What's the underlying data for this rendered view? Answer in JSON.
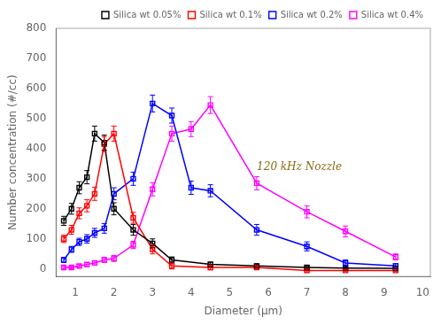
{
  "chart_data": {
    "type": "line",
    "xlabel": "Diameter (μm)",
    "ylabel": "Number concentration (#/cc)",
    "xlim": [
      0.5,
      10.2
    ],
    "ylim": [
      -25,
      800
    ],
    "xticks": [
      1,
      2,
      3,
      4,
      5,
      6,
      7,
      8,
      9,
      10
    ],
    "yticks": [
      0,
      100,
      200,
      300,
      400,
      500,
      600,
      700,
      800
    ],
    "grid": false,
    "legend": "upper right",
    "marker": "square",
    "line_style": "solid",
    "annotations": [
      {
        "text": "120 kHz Nozzle",
        "color": "#8B6914"
      }
    ],
    "series": [
      {
        "name": "Silica wt 0.05%",
        "color": "black",
        "x": [
          0.7,
          0.9,
          1.1,
          1.3,
          1.5,
          1.75,
          2.0,
          2.5,
          3.0,
          3.5,
          4.5,
          5.7,
          7.0,
          8.0,
          9.3
        ],
        "values": [
          160,
          200,
          270,
          305,
          450,
          420,
          200,
          130,
          85,
          30,
          15,
          10,
          5,
          3,
          2
        ],
        "yerr": [
          15,
          18,
          20,
          22,
          25,
          25,
          20,
          18,
          15,
          10,
          8,
          7,
          5,
          4,
          3
        ]
      },
      {
        "name": "Silica wt 0.1%",
        "color": "red",
        "x": [
          0.7,
          0.9,
          1.1,
          1.3,
          1.5,
          1.75,
          2.0,
          2.5,
          3.0,
          3.5,
          4.5,
          5.7,
          7.0,
          8.0,
          9.3
        ],
        "values": [
          100,
          130,
          185,
          210,
          250,
          415,
          450,
          170,
          65,
          10,
          5,
          5,
          -5,
          -5,
          -5
        ],
        "yerr": [
          12,
          15,
          18,
          20,
          22,
          25,
          25,
          18,
          15,
          10,
          8,
          6,
          5,
          4,
          4
        ]
      },
      {
        "name": "Silica wt 0.2%",
        "color": "blue",
        "x": [
          0.7,
          0.9,
          1.1,
          1.3,
          1.5,
          1.75,
          2.0,
          2.5,
          3.0,
          3.5,
          4.0,
          4.5,
          5.7,
          7.0,
          8.0,
          9.3
        ],
        "values": [
          30,
          65,
          90,
          100,
          120,
          135,
          250,
          300,
          550,
          510,
          270,
          260,
          130,
          75,
          20,
          10
        ],
        "yerr": [
          8,
          10,
          12,
          14,
          15,
          16,
          20,
          22,
          28,
          25,
          22,
          20,
          18,
          15,
          10,
          8
        ]
      },
      {
        "name": "Silica wt 0.4%",
        "color": "magenta",
        "x": [
          0.7,
          0.9,
          1.1,
          1.3,
          1.5,
          1.75,
          2.0,
          2.5,
          3.0,
          3.5,
          4.0,
          4.5,
          5.7,
          7.0,
          8.0,
          9.3
        ],
        "values": [
          5,
          5,
          10,
          15,
          20,
          30,
          35,
          80,
          265,
          450,
          465,
          545,
          285,
          190,
          125,
          40
        ],
        "yerr": [
          4,
          4,
          5,
          6,
          7,
          8,
          10,
          12,
          22,
          25,
          25,
          28,
          22,
          20,
          18,
          10
        ]
      }
    ]
  }
}
